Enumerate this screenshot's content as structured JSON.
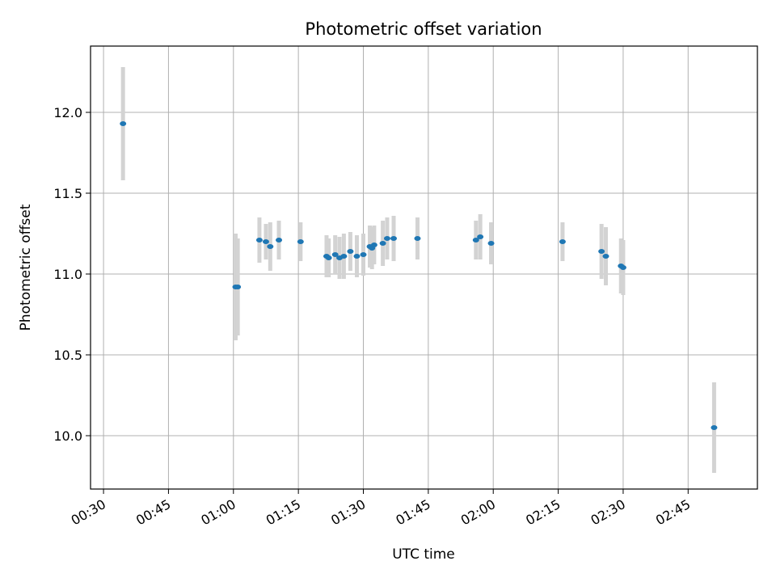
{
  "chart_data": {
    "type": "scatter",
    "title": "Photometric offset variation",
    "xlabel": "UTC time",
    "ylabel": "Photometric offset",
    "x_ticks": [
      "00:30",
      "00:45",
      "01:00",
      "01:15",
      "01:30",
      "01:45",
      "02:00",
      "02:15",
      "02:30",
      "02:45"
    ],
    "y_ticks": [
      "10.0",
      "10.5",
      "11.0",
      "11.5",
      "12.0"
    ],
    "xlim": [
      "00:27",
      "03:01"
    ],
    "ylim": [
      9.67,
      12.41
    ],
    "grid": true,
    "colors": {
      "marker": "#1f77b4",
      "errorbar": "#d3d3d3",
      "grid": "#b0b0b0"
    },
    "points": [
      {
        "x": "00:34:30",
        "y": 11.93,
        "err": 0.35
      },
      {
        "x": "01:00:30",
        "y": 10.92,
        "err": 0.33
      },
      {
        "x": "01:01:00",
        "y": 10.92,
        "err": 0.3
      },
      {
        "x": "01:06:00",
        "y": 11.21,
        "err": 0.14
      },
      {
        "x": "01:07:30",
        "y": 11.2,
        "err": 0.11
      },
      {
        "x": "01:08:30",
        "y": 11.17,
        "err": 0.15
      },
      {
        "x": "01:10:30",
        "y": 11.21,
        "err": 0.12
      },
      {
        "x": "01:15:30",
        "y": 11.2,
        "err": 0.12
      },
      {
        "x": "01:21:30",
        "y": 11.11,
        "err": 0.13
      },
      {
        "x": "01:22:00",
        "y": 11.1,
        "err": 0.12
      },
      {
        "x": "01:23:30",
        "y": 11.12,
        "err": 0.12
      },
      {
        "x": "01:24:30",
        "y": 11.1,
        "err": 0.13
      },
      {
        "x": "01:25:30",
        "y": 11.11,
        "err": 0.14
      },
      {
        "x": "01:27:00",
        "y": 11.14,
        "err": 0.12
      },
      {
        "x": "01:28:30",
        "y": 11.11,
        "err": 0.13
      },
      {
        "x": "01:30:00",
        "y": 11.12,
        "err": 0.13
      },
      {
        "x": "01:31:30",
        "y": 11.17,
        "err": 0.13
      },
      {
        "x": "01:32:00",
        "y": 11.16,
        "err": 0.13
      },
      {
        "x": "01:32:30",
        "y": 11.18,
        "err": 0.12
      },
      {
        "x": "01:34:30",
        "y": 11.19,
        "err": 0.14
      },
      {
        "x": "01:35:30",
        "y": 11.22,
        "err": 0.13
      },
      {
        "x": "01:37:00",
        "y": 11.22,
        "err": 0.14
      },
      {
        "x": "01:42:30",
        "y": 11.22,
        "err": 0.13
      },
      {
        "x": "01:56:00",
        "y": 11.21,
        "err": 0.12
      },
      {
        "x": "01:57:00",
        "y": 11.23,
        "err": 0.14
      },
      {
        "x": "01:59:30",
        "y": 11.19,
        "err": 0.13
      },
      {
        "x": "02:16:00",
        "y": 11.2,
        "err": 0.12
      },
      {
        "x": "02:25:00",
        "y": 11.14,
        "err": 0.17
      },
      {
        "x": "02:26:00",
        "y": 11.11,
        "err": 0.18
      },
      {
        "x": "02:29:30",
        "y": 11.05,
        "err": 0.17
      },
      {
        "x": "02:30:00",
        "y": 11.04,
        "err": 0.17
      },
      {
        "x": "02:51:00",
        "y": 10.05,
        "err": 0.28
      }
    ]
  }
}
